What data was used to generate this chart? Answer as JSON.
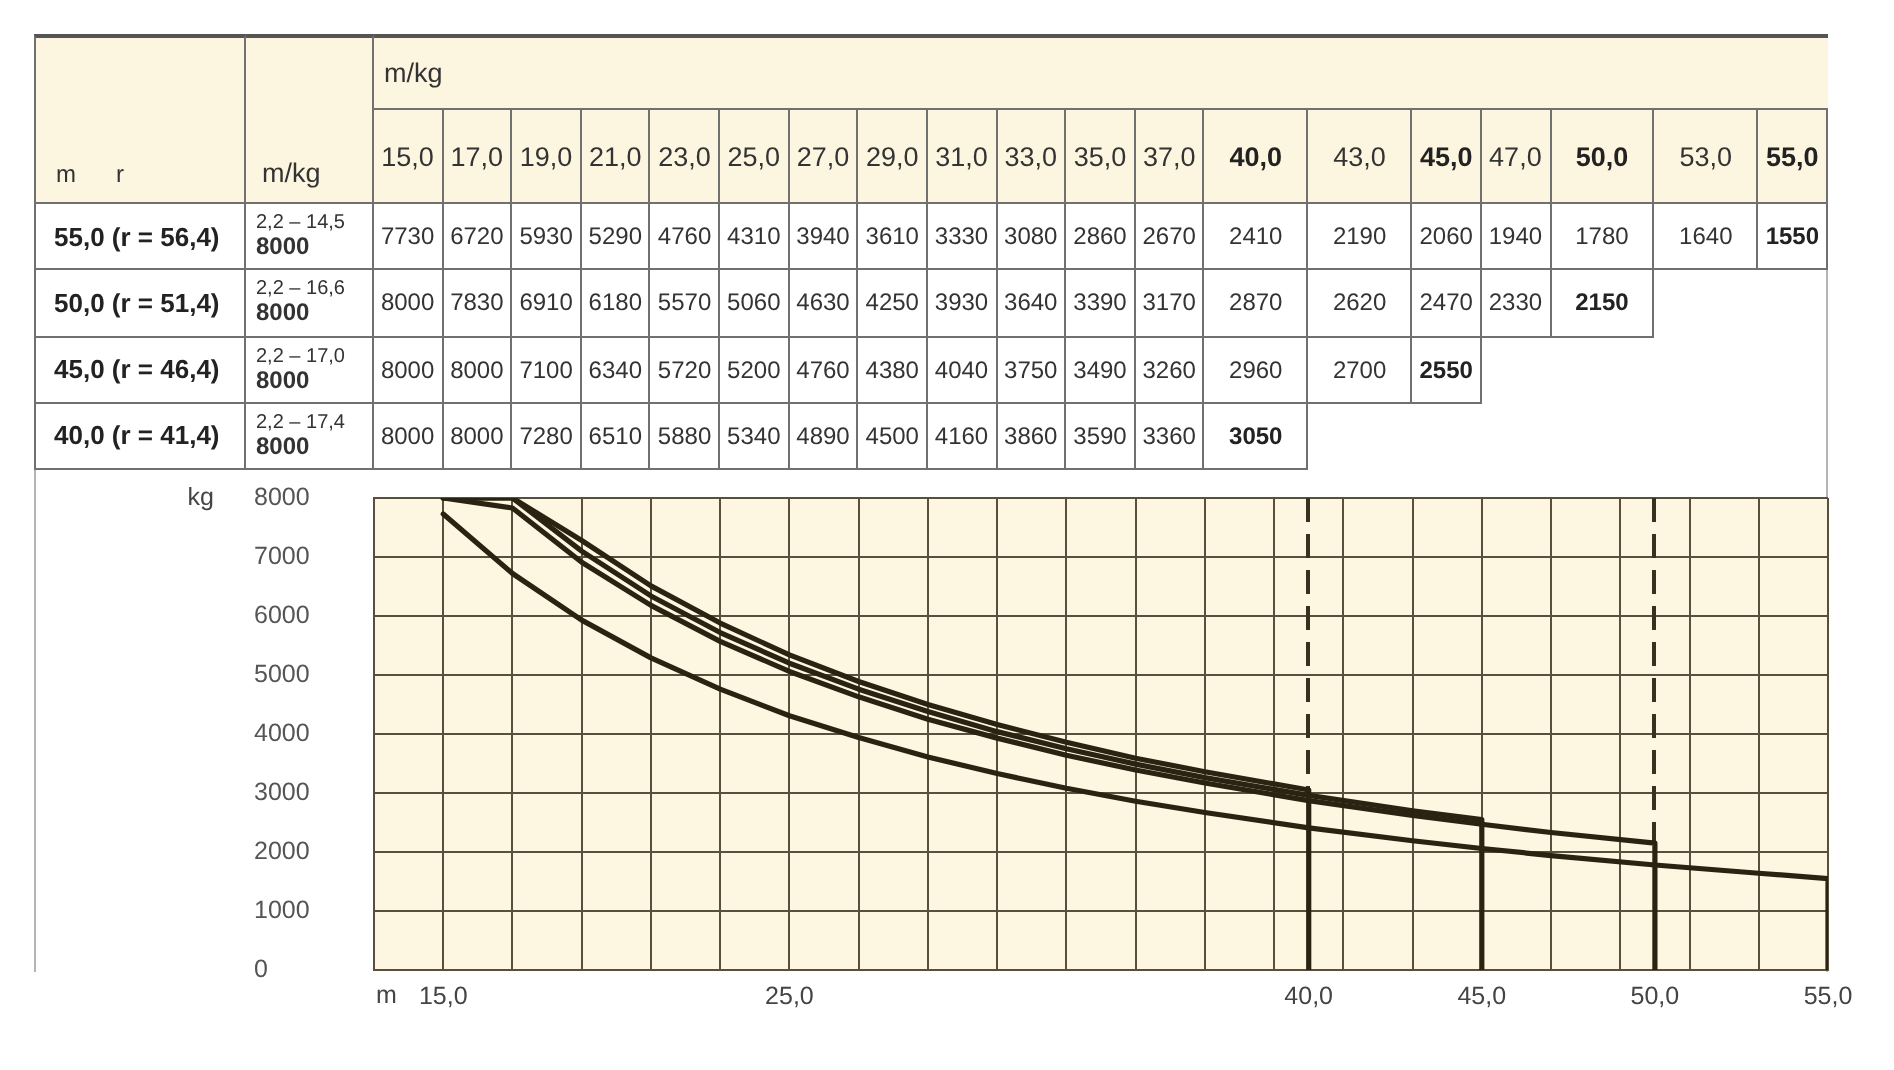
{
  "chart_data": [
    {
      "type": "heatmap",
      "xlabel": "m/kg",
      "ylabel": "m      r",
      "y2label": "m/kg",
      "data_labels": true,
      "categories": [
        "15,0",
        "17,0",
        "19,0",
        "21,0",
        "23,0",
        "25,0",
        "27,0",
        "29,0",
        "31,0",
        "33,0",
        "35,0",
        "37,0",
        "40,0",
        "43,0",
        "45,0",
        "47,0",
        "50,0",
        "53,0",
        "55,0"
      ],
      "y_categories": [
        "55,0 (r = 56,4)",
        "50,0 (r = 51,4)",
        "45,0 (r = 46,4)",
        "40,0 (r = 41,4)"
      ],
      "y2_categories": [
        "2,2 – 14,5\n8000",
        "2,2 – 16,6\n8000",
        "2,2 – 17,0\n8000",
        "2,2 – 17,4\n8000"
      ],
      "cells": [
        [
          7730,
          6720,
          5930,
          5290,
          4760,
          4310,
          3940,
          3610,
          3330,
          3080,
          2860,
          2670,
          2410,
          2190,
          2060,
          1940,
          1780,
          1640,
          1550
        ],
        [
          8000,
          7830,
          6910,
          6180,
          5570,
          5060,
          4630,
          4250,
          3930,
          3640,
          3390,
          3170,
          2870,
          2620,
          2470,
          2330,
          2150,
          null,
          null
        ],
        [
          8000,
          8000,
          7100,
          6340,
          5720,
          5200,
          4760,
          4380,
          4040,
          3750,
          3490,
          3260,
          2960,
          2700,
          2550,
          null,
          null,
          null,
          null
        ],
        [
          8000,
          8000,
          7280,
          6510,
          5880,
          5340,
          4890,
          4500,
          4160,
          3860,
          3590,
          3360,
          3050,
          null,
          null,
          null,
          null,
          null,
          null
        ]
      ]
    },
    {
      "type": "line",
      "xlabel": "m",
      "ylabel": "kg",
      "series": [
        {
          "color": "#2a2312",
          "x": [
            15,
            17,
            19,
            21,
            23,
            25,
            27,
            29,
            31,
            33,
            35,
            37,
            40,
            43,
            45,
            47,
            50,
            53,
            55,
            55
          ],
          "values": [
            7730,
            6720,
            5930,
            5290,
            4760,
            4310,
            3940,
            3610,
            3330,
            3080,
            2860,
            2670,
            2410,
            2190,
            2060,
            1940,
            1780,
            1640,
            1550,
            0
          ]
        },
        {
          "color": "#2a2312",
          "x": [
            15,
            17,
            19,
            21,
            23,
            25,
            27,
            29,
            31,
            33,
            35,
            37,
            40,
            43,
            45,
            47,
            50,
            50
          ],
          "values": [
            8000,
            7830,
            6910,
            6180,
            5570,
            5060,
            4630,
            4250,
            3930,
            3640,
            3390,
            3170,
            2870,
            2620,
            2470,
            2330,
            2150,
            0
          ]
        },
        {
          "color": "#2a2312",
          "x": [
            15,
            17,
            19,
            21,
            23,
            25,
            27,
            29,
            31,
            33,
            35,
            37,
            40,
            43,
            45,
            45
          ],
          "values": [
            8000,
            8000,
            7100,
            6340,
            5720,
            5200,
            4760,
            4380,
            4040,
            3750,
            3490,
            3260,
            2960,
            2700,
            2550,
            0
          ]
        },
        {
          "color": "#2a2312",
          "x": [
            15,
            17,
            19,
            21,
            23,
            25,
            27,
            29,
            31,
            33,
            35,
            37,
            40,
            40
          ],
          "values": [
            8000,
            8000,
            7280,
            6510,
            5880,
            5340,
            4890,
            4500,
            4160,
            3860,
            3590,
            3360,
            3050,
            0
          ]
        }
      ],
      "xlim": [
        13,
        55
      ],
      "xticks": [
        {
          "value": 13,
          "label": null
        },
        {
          "value": 15,
          "label": "15,0"
        },
        {
          "value": 17,
          "label": null
        },
        {
          "value": 19,
          "label": null
        },
        {
          "value": 21,
          "label": null
        },
        {
          "value": 23,
          "label": null
        },
        {
          "value": 25,
          "label": "25,0"
        },
        {
          "value": 27,
          "label": null
        },
        {
          "value": 29,
          "label": null
        },
        {
          "value": 31,
          "label": null
        },
        {
          "value": 33,
          "label": null
        },
        {
          "value": 35,
          "label": null
        },
        {
          "value": 37,
          "label": null
        },
        {
          "value": 39,
          "label": null
        },
        {
          "value": 40,
          "label": "40,0"
        },
        {
          "value": 41,
          "label": null
        },
        {
          "value": 43,
          "label": null
        },
        {
          "value": 45,
          "label": "45,0"
        },
        {
          "value": 47,
          "label": null
        },
        {
          "value": 49,
          "label": null
        },
        {
          "value": 50,
          "label": "50,0"
        },
        {
          "value": 51,
          "label": null
        },
        {
          "value": 53,
          "label": null
        },
        {
          "value": 55,
          "label": "55,0"
        }
      ],
      "ylim": [
        0,
        8000
      ],
      "yticks": [
        0,
        1000,
        2000,
        3000,
        4000,
        5000,
        6000,
        7000,
        8000
      ],
      "grid": true,
      "marker": "none",
      "ref_lines": [
        {
          "axis": "x",
          "value": 40,
          "line_style": "dashed",
          "color": "#3a3020"
        },
        {
          "axis": "x",
          "value": 50,
          "line_style": "dashed",
          "color": "#3a3020"
        }
      ]
    }
  ]
}
